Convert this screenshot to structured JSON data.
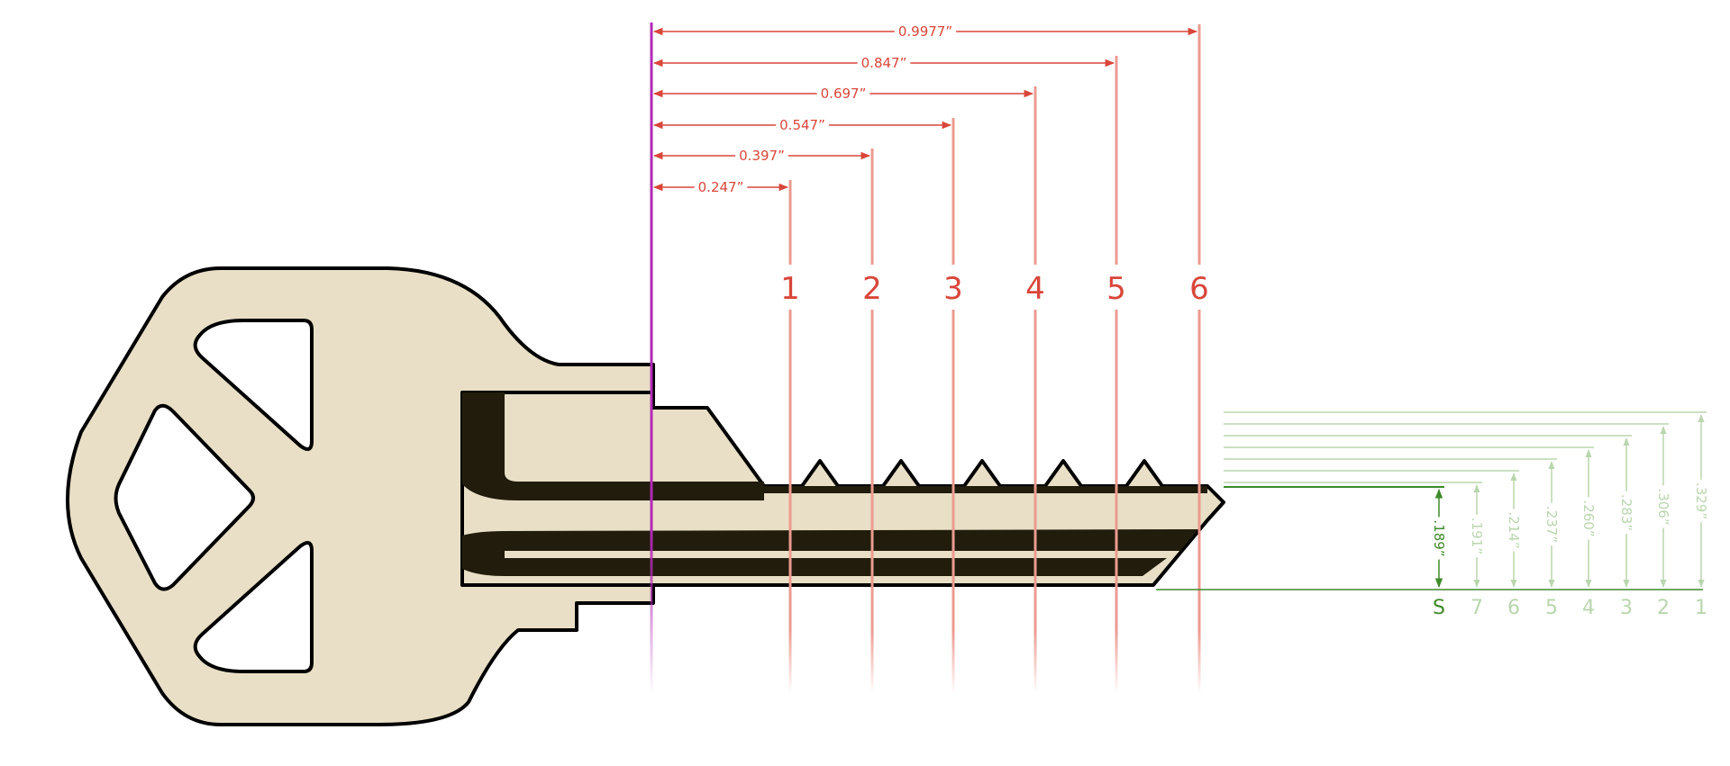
{
  "colors": {
    "key_fill": "#e8dfc6",
    "key_stroke": "#000000",
    "groove_dark": "#221c0c",
    "spacing_line": "#ec9b90",
    "spacing_text": "#d9463a",
    "shoulder_line": "#b22ab6",
    "depth_active": "#3f8a2a",
    "depth_faded": "#bad6ae"
  },
  "spacing": {
    "dimensions": [
      "0.247”",
      "0.397”",
      "0.547”",
      "0.697”",
      "0.847”",
      "0.9977”"
    ],
    "positions": [
      "1",
      "2",
      "3",
      "4",
      "5",
      "6"
    ]
  },
  "depths": {
    "labels": [
      "S",
      "7",
      "6",
      "5",
      "4",
      "3",
      "2",
      "1"
    ],
    "dimensions": [
      ".189”",
      ".191”",
      ".214”",
      ".237”",
      ".260”",
      ".283”",
      ".306”",
      ".329”"
    ]
  }
}
